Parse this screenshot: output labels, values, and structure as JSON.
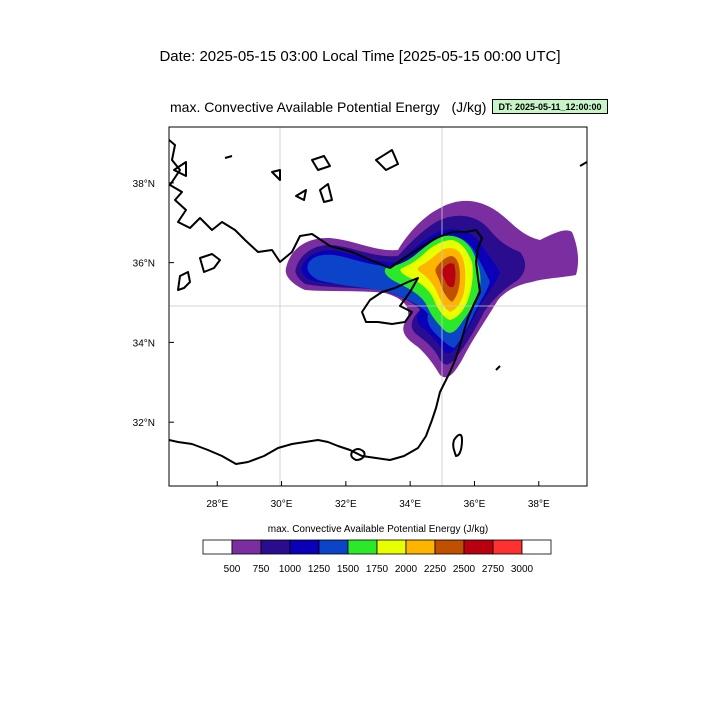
{
  "header": {
    "date_prefix": "Date:",
    "local_time": "2025-05-15  03:00 Local Time",
    "utc_time": "[2025-05-15  00:00 UTC]"
  },
  "plot": {
    "title": "max. Convective Available Potential Energy",
    "units": "(J/kg)",
    "dt_badge": "DT: 2025-05-11_12:00:00",
    "lon_range": [
      26.5,
      39.5
    ],
    "lat_range": [
      30.4,
      39.4
    ],
    "x_ticks": [
      "28°E",
      "30°E",
      "32°E",
      "34°E",
      "36°E",
      "38°E"
    ],
    "y_ticks": [
      "32°N",
      "34°N",
      "36°N",
      "38°N"
    ],
    "x_tick_values": [
      28,
      30,
      32,
      34,
      36,
      38
    ],
    "y_tick_values": [
      32,
      34,
      36,
      38
    ],
    "grid_lines": {
      "lon": [
        30,
        35
      ],
      "lat": [
        35
      ]
    }
  },
  "colorbar": {
    "title": "max. Convective Available Potential Energy  (J/kg)",
    "levels": [
      "500",
      "750",
      "1000",
      "1250",
      "1500",
      "1750",
      "2000",
      "2250",
      "2500",
      "2750",
      "3000"
    ],
    "colors": [
      "#ffffff",
      "#7b2ea0",
      "#2a0d8f",
      "#0b00b8",
      "#0b44c8",
      "#2be82b",
      "#e8ff00",
      "#ffb400",
      "#c05000",
      "#b80010",
      "#ff3030",
      "#ffffff"
    ]
  }
}
